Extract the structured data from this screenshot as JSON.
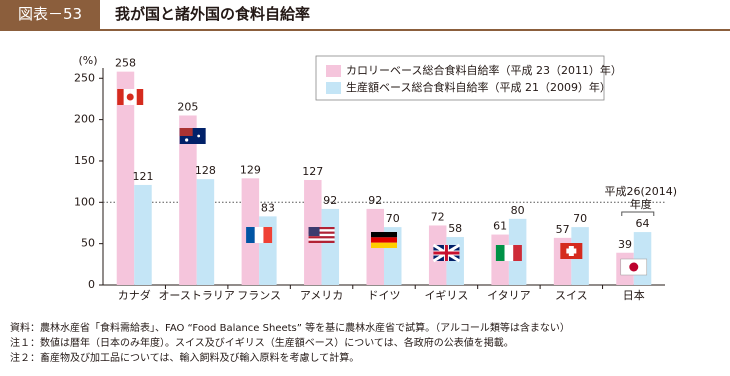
{
  "header": {
    "label": "図表－53",
    "title": "我が国と諸外国の食料自給率"
  },
  "chart_data": {
    "type": "bar",
    "y_unit": "(%)",
    "categories": [
      "カナダ",
      "オーストラリア",
      "フランス",
      "アメリカ",
      "ドイツ",
      "イギリス",
      "イタリア",
      "スイス",
      "日本"
    ],
    "series": [
      {
        "name": "カロリーベース総合食料自給率（平成 23（2011）年）",
        "color": "#f5c5dc",
        "values": [
          258,
          205,
          129,
          127,
          92,
          72,
          61,
          57,
          39
        ]
      },
      {
        "name": "生産額ベース総合食料自給率（平成 21（2009）年）",
        "color": "#c4e5f6",
        "values": [
          121,
          128,
          83,
          92,
          70,
          58,
          80,
          70,
          64
        ]
      }
    ],
    "ylim": [
      0,
      260
    ],
    "yticks": [
      0,
      50,
      100,
      150,
      200,
      250
    ],
    "reference_line": 100,
    "annotation": [
      "平成26(2014)",
      "年度"
    ]
  },
  "notes": [
    "資料：農林水産省「食料需給表」、FAO “Food Balance Sheets” 等を基に農林水産省で試算。（アルコール類等は含まない）",
    "注１：数値は暦年（日本のみ年度）。スイス及びイギリス（生産額ベース）については、各政府の公表値を掲載。",
    "注２：畜産物及び加工品については、輸入飼料及び輸入原料を考慮して計算。"
  ]
}
